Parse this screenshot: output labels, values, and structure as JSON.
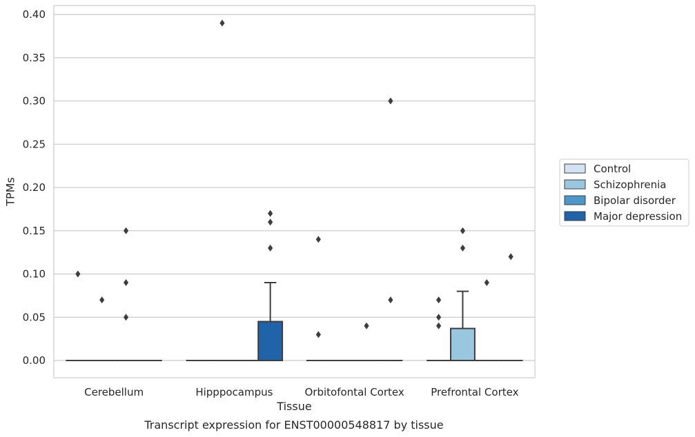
{
  "chart_data": {
    "type": "box",
    "xlabel": "Tissue",
    "ylabel": "TPMs",
    "caption": "Transcript expression for ENST00000548817 by tissue",
    "categories": [
      "Cerebellum",
      "Hipppocampus",
      "Orbitofontal Cortex",
      "Prefrontal Cortex"
    ],
    "ylim": [
      -0.02,
      0.41
    ],
    "yticks": [
      "0.00",
      "0.05",
      "0.10",
      "0.15",
      "0.20",
      "0.25",
      "0.30",
      "0.35",
      "0.40"
    ],
    "grid": "horizontal",
    "legend_position": "right",
    "series": [
      {
        "name": "Control",
        "color": "#d2e3f3",
        "boxes": [
          {
            "q1": 0,
            "median": 0,
            "q3": 0,
            "whisker_low": 0,
            "whisker_high": 0,
            "outliers": [
              0.1
            ]
          },
          {
            "q1": 0,
            "median": 0,
            "q3": 0,
            "whisker_low": 0,
            "whisker_high": 0,
            "outliers": []
          },
          {
            "q1": 0,
            "median": 0,
            "q3": 0,
            "whisker_low": 0,
            "whisker_high": 0,
            "outliers": [
              0.14,
              0.03
            ]
          },
          {
            "q1": 0,
            "median": 0,
            "q3": 0,
            "whisker_low": 0,
            "whisker_high": 0,
            "outliers": [
              0.07,
              0.05,
              0.04
            ]
          }
        ]
      },
      {
        "name": "Schizophrenia",
        "color": "#9ac7e0",
        "boxes": [
          {
            "q1": 0,
            "median": 0,
            "q3": 0,
            "whisker_low": 0,
            "whisker_high": 0,
            "outliers": [
              0.07
            ]
          },
          {
            "q1": 0,
            "median": 0,
            "q3": 0,
            "whisker_low": 0,
            "whisker_high": 0,
            "outliers": [
              0.39
            ]
          },
          {
            "q1": 0,
            "median": 0,
            "q3": 0,
            "whisker_low": 0,
            "whisker_high": 0,
            "outliers": []
          },
          {
            "q1": 0,
            "median": 0,
            "q3": 0.037,
            "whisker_low": 0,
            "whisker_high": 0.08,
            "outliers": [
              0.15,
              0.13
            ]
          }
        ]
      },
      {
        "name": "Bipolar disorder",
        "color": "#4b98c9",
        "boxes": [
          {
            "q1": 0,
            "median": 0,
            "q3": 0,
            "whisker_low": 0,
            "whisker_high": 0,
            "outliers": [
              0.15,
              0.09,
              0.05
            ]
          },
          {
            "q1": 0,
            "median": 0,
            "q3": 0,
            "whisker_low": 0,
            "whisker_high": 0,
            "outliers": []
          },
          {
            "q1": 0,
            "median": 0,
            "q3": 0,
            "whisker_low": 0,
            "whisker_high": 0,
            "outliers": [
              0.04
            ]
          },
          {
            "q1": 0,
            "median": 0,
            "q3": 0,
            "whisker_low": 0,
            "whisker_high": 0,
            "outliers": [
              0.09
            ]
          }
        ]
      },
      {
        "name": "Major depression",
        "color": "#2163a9",
        "boxes": [
          {
            "q1": 0,
            "median": 0,
            "q3": 0,
            "whisker_low": 0,
            "whisker_high": 0,
            "outliers": []
          },
          {
            "q1": 0,
            "median": 0,
            "q3": 0.045,
            "whisker_low": 0,
            "whisker_high": 0.09,
            "outliers": [
              0.17,
              0.16,
              0.13
            ]
          },
          {
            "q1": 0,
            "median": 0,
            "q3": 0,
            "whisker_low": 0,
            "whisker_high": 0,
            "outliers": [
              0.3,
              0.07
            ]
          },
          {
            "q1": 0,
            "median": 0,
            "q3": 0,
            "whisker_low": 0,
            "whisker_high": 0,
            "outliers": [
              0.12
            ]
          }
        ]
      }
    ]
  }
}
